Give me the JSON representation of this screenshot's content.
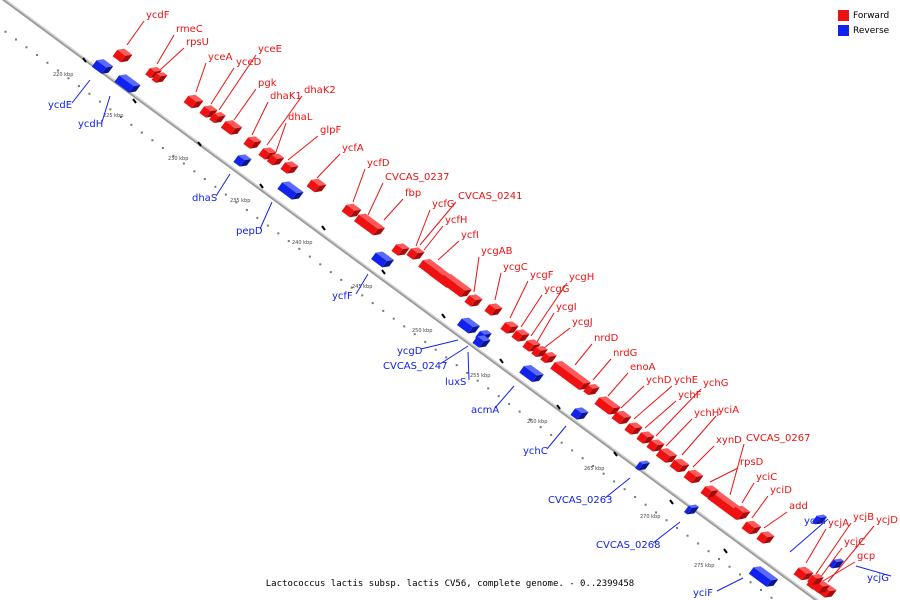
{
  "legend": {
    "forward_label": "Forward",
    "reverse_label": "Reverse",
    "forward_color": "#ee1111",
    "reverse_color": "#1122ee"
  },
  "caption": "Lactococcus lactis subsp. lactis CV56, complete genome. - 0..2399458",
  "ticks": [
    "220 kbp",
    "225 kbp",
    "230 kbp",
    "235 kbp",
    "240 kbp",
    "245 kbp",
    "250 kbp",
    "255 kbp",
    "260 kbp",
    "265 kbp",
    "270 kbp",
    "275 kbp"
  ],
  "forward_genes": [
    "ycdF",
    "rmeC",
    "rpsU",
    "yceA",
    "yceD",
    "yceE",
    "pgk",
    "dhaK1",
    "dhaK2",
    "dhaL",
    "glpF",
    "ycfA",
    "ycfD",
    "CVCAS_0237",
    "fbp",
    "CVCAS_0241",
    "ycfG",
    "ycfH",
    "ycfI",
    "ycgAB",
    "ycgC",
    "ycgF",
    "ycgG",
    "ycgH",
    "ycgI",
    "ycgJ",
    "nrdD",
    "nrdG",
    "enoA",
    "ychD",
    "ychE",
    "ychF",
    "ychG",
    "ychH",
    "yciA",
    "xynD",
    "CVCAS_0267",
    "rpsD",
    "yciC",
    "yciD",
    "add",
    "ycjA",
    "ycjB",
    "ycjD",
    "ycjC",
    "gcp"
  ],
  "reverse_genes": [
    "ycdE",
    "ycdH",
    "dhaS",
    "pepD",
    "ycfF",
    "ycgD",
    "CVCAS_0247",
    "luxS",
    "acmA",
    "ychC",
    "CVCAS_0263",
    "CVCAS_0268",
    "yciH",
    "ycjG",
    "yciF"
  ]
}
